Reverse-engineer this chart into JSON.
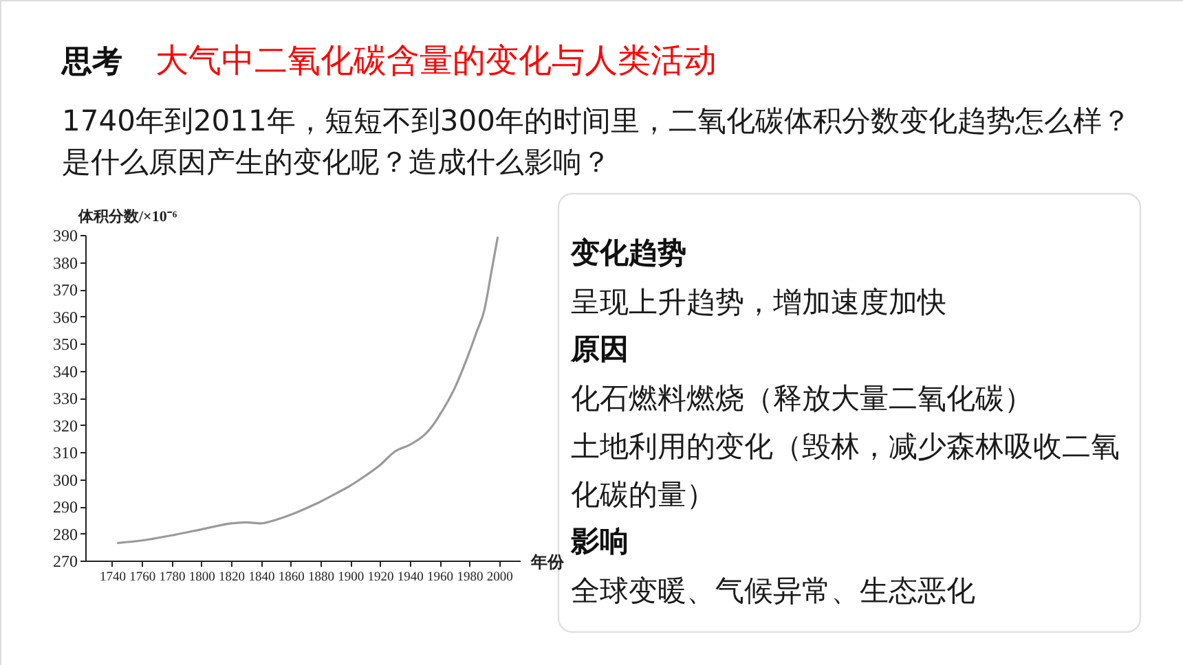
{
  "chart_data": [
    {
      "type": "other",
      "title": "大气中二氧化碳含量的变化与人类活动",
      "subtitle": "1740年到2011年，短短不到300年的时间里，二氧化碳体积分数变化趋势怎么样？是什么原因产生的变化呢？造成什么影响？",
      "annotations": [
        "思考"
      ]
    },
    {
      "type": "line",
      "xlabel": "年份",
      "ylabel": "体积分数/×10⁻⁶",
      "x": [
        1744,
        1760,
        1780,
        1800,
        1820,
        1830,
        1840,
        1850,
        1860,
        1870,
        1880,
        1890,
        1900,
        1910,
        1920,
        1930,
        1940,
        1950,
        1955,
        1960,
        1970,
        1980,
        1985,
        1990,
        1995,
        1999
      ],
      "values": [
        276.5,
        277.4,
        279.3,
        281.5,
        283.7,
        284.1,
        283.7,
        285.0,
        286.9,
        289.2,
        291.7,
        294.6,
        297.6,
        301.2,
        305.2,
        310.2,
        312.7,
        316.4,
        319.5,
        323.6,
        333.4,
        346.8,
        354.4,
        362.2,
        377,
        389
      ],
      "color": "#9a9a9a",
      "xlim": [
        1722,
        2014
      ],
      "ylim": [
        270,
        390
      ],
      "xticks": [
        1740,
        1760,
        1780,
        1800,
        1820,
        1840,
        1860,
        1880,
        1900,
        1920,
        1940,
        1960,
        1980,
        2000
      ],
      "yticks": [
        270,
        280,
        290,
        300,
        310,
        320,
        330,
        340,
        350,
        360,
        370,
        380,
        390
      ]
    },
    {
      "type": "other",
      "title": "变化趋势",
      "annotations": [
        "呈现上升趋势，增加速度加快"
      ]
    },
    {
      "type": "other",
      "title": "原因",
      "annotations": [
        "化石燃料燃烧（释放大量二氧化碳）",
        "土地利用的变化（毁林，减少森林吸收二氧化碳的量）"
      ]
    },
    {
      "type": "other",
      "title": "影响",
      "annotations": [
        "全球变暖、气候异常、生态恶化"
      ]
    }
  ]
}
